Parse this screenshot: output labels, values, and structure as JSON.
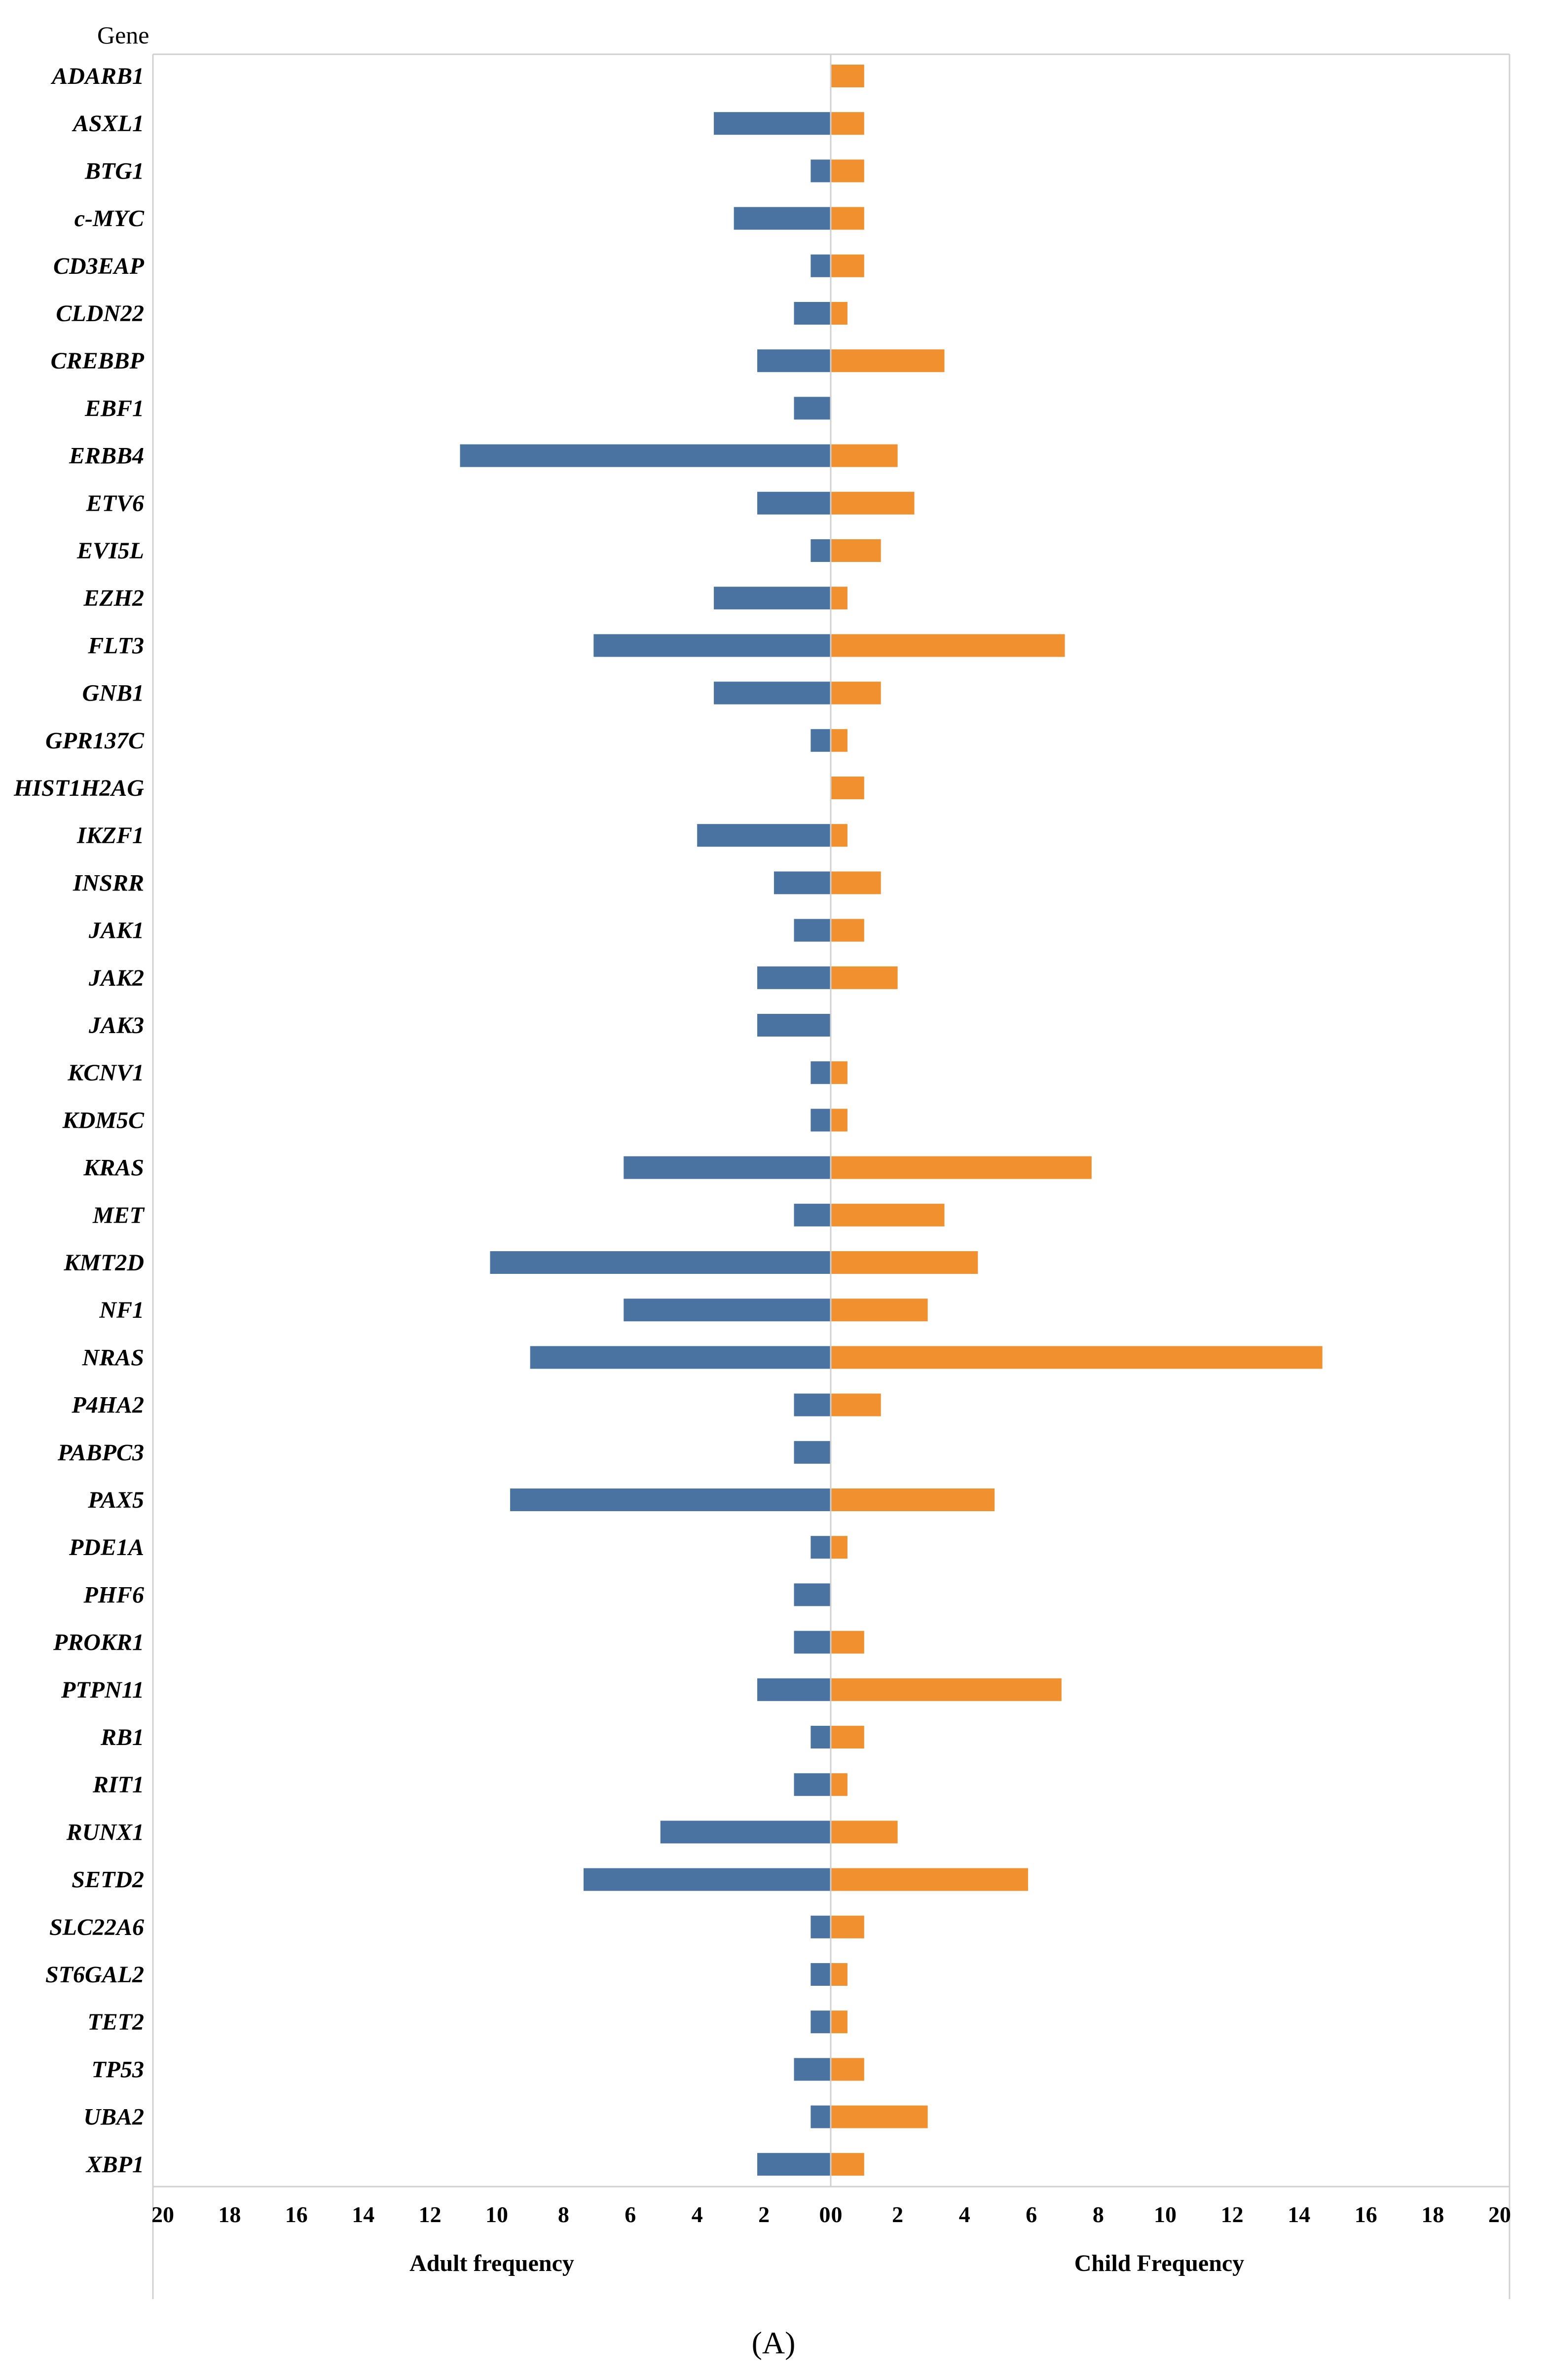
{
  "chart_data": {
    "type": "bar",
    "orientation": "horizontal-butterfly",
    "category_header": "Gene",
    "caption": "(A)",
    "categories": [
      "ADARB1",
      "ASXL1",
      "BTG1",
      "c-MYC",
      "CD3EAP",
      "CLDN22",
      "CREBBP",
      "EBF1",
      "ERBB4",
      "ETV6",
      "EVI5L",
      "EZH2",
      "FLT3",
      "GNB1",
      "GPR137C",
      "HIST1H2AG",
      "IKZF1",
      "INSRR",
      "JAK1",
      "JAK2",
      "JAK3",
      "KCNV1",
      "KDM5C",
      "KRAS",
      "MET",
      "KMT2D",
      "NF1",
      "NRAS",
      "P4HA2",
      "PABPC3",
      "PAX5",
      "PDE1A",
      "PHF6",
      "PROKR1",
      "PTPN11",
      "RB1",
      "RIT1",
      "RUNX1",
      "SETD2",
      "SLC22A6",
      "ST6GAL2",
      "TET2",
      "TP53",
      "UBA2",
      "XBP1"
    ],
    "series": [
      {
        "name": "Adult frequency",
        "color": "#4A73A1",
        "values": [
          0,
          3.5,
          0.6,
          2.9,
          0.6,
          1.1,
          2.2,
          1.1,
          11.1,
          2.2,
          0.6,
          3.5,
          7.1,
          3.5,
          0.6,
          0,
          4.0,
          1.7,
          1.1,
          2.2,
          2.2,
          0.6,
          0.6,
          6.2,
          1.1,
          10.2,
          6.2,
          9.0,
          1.1,
          1.1,
          9.6,
          0.6,
          1.1,
          1.1,
          2.2,
          0.6,
          1.1,
          5.1,
          7.4,
          0.6,
          0.6,
          0.6,
          1.1,
          0.6,
          2.2
        ]
      },
      {
        "name": "Child Frequency",
        "color": "#F0902F",
        "values": [
          1.0,
          1.0,
          1.0,
          1.0,
          1.0,
          0.5,
          3.4,
          0,
          2.0,
          2.5,
          1.5,
          0.5,
          7.0,
          1.5,
          0.5,
          1.0,
          0.5,
          1.5,
          1.0,
          2.0,
          0,
          0.5,
          0.5,
          7.8,
          3.4,
          4.4,
          2.9,
          14.7,
          1.5,
          0,
          4.9,
          0.5,
          0,
          1.0,
          6.9,
          1.0,
          0.5,
          2.0,
          5.9,
          1.0,
          0.5,
          0.5,
          1.0,
          2.9,
          1.0
        ]
      }
    ],
    "xlabel_left": "Adult  frequency",
    "xlabel_right": "Child Frequency",
    "left_ticks": [
      "20",
      "18",
      "16",
      "14",
      "12",
      "10",
      "8",
      "6",
      "4",
      "2",
      "0"
    ],
    "right_ticks": [
      "0",
      "2",
      "4",
      "6",
      "8",
      "10",
      "12",
      "14",
      "16",
      "18",
      "20"
    ],
    "xlim": [
      0,
      20
    ]
  }
}
